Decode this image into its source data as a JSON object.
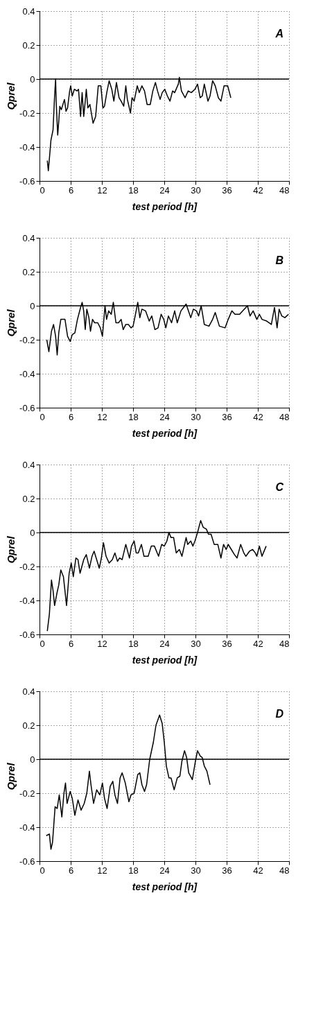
{
  "chart_data": [
    {
      "type": "line",
      "xlabel": "test period [h]",
      "ylabel": "Qprel",
      "annotations": [
        "A"
      ],
      "color": "#000000",
      "grid": true,
      "xlim": [
        0,
        48
      ],
      "xticks": [
        0,
        6,
        12,
        18,
        24,
        30,
        36,
        42,
        48
      ],
      "ylim": [
        -0.6,
        0.4
      ],
      "yticks": [
        -0.6,
        -0.4,
        -0.2,
        0,
        0.2,
        0.4
      ],
      "ref_lines": [
        {
          "axis": "y",
          "value": 0,
          "color": "#000000"
        }
      ],
      "x": [
        1.5,
        1.7,
        2.2,
        2.6,
        2.9,
        3.1,
        3.2,
        3.5,
        3.7,
        3.9,
        4.2,
        4.5,
        4.8,
        5.1,
        5.4,
        5.8,
        6.0,
        6.3,
        6.7,
        7.2,
        7.5,
        7.9,
        8.2,
        8.5,
        8.8,
        9.0,
        9.3,
        9.7,
        10.3,
        10.8,
        11.3,
        11.8,
        12.2,
        12.5,
        13.0,
        13.4,
        13.9,
        14.3,
        14.8,
        15.3,
        15.7,
        16.2,
        16.6,
        16.9,
        17.5,
        17.8,
        18.2,
        18.8,
        19.2,
        19.7,
        20.2,
        20.7,
        21.3,
        21.8,
        22.3,
        22.7,
        23.2,
        23.6,
        24.1,
        24.6,
        25.1,
        25.6,
        26.0,
        26.7,
        26.9,
        27.3,
        28.0,
        28.6,
        29.2,
        29.9,
        30.4,
        30.9,
        31.3,
        31.7,
        32.4,
        32.8,
        33.3,
        33.8,
        34.4,
        34.9,
        35.5,
        36.2,
        36.8
      ],
      "values": [
        -0.48,
        -0.54,
        -0.36,
        -0.3,
        -0.1,
        0.0,
        -0.13,
        -0.33,
        -0.25,
        -0.16,
        -0.18,
        -0.15,
        -0.12,
        -0.19,
        -0.17,
        -0.07,
        -0.04,
        -0.1,
        -0.06,
        -0.07,
        -0.06,
        -0.22,
        -0.08,
        -0.22,
        -0.13,
        -0.06,
        -0.17,
        -0.15,
        -0.26,
        -0.22,
        -0.04,
        -0.04,
        -0.17,
        -0.16,
        -0.07,
        -0.01,
        -0.06,
        -0.13,
        -0.02,
        -0.11,
        -0.13,
        -0.16,
        -0.04,
        -0.12,
        -0.2,
        -0.11,
        -0.13,
        -0.04,
        -0.08,
        -0.04,
        -0.07,
        -0.15,
        -0.15,
        -0.07,
        -0.02,
        -0.07,
        -0.12,
        -0.08,
        -0.06,
        -0.1,
        -0.13,
        -0.07,
        -0.08,
        -0.03,
        0.01,
        -0.07,
        -0.11,
        -0.07,
        -0.08,
        -0.06,
        -0.03,
        -0.11,
        -0.1,
        -0.03,
        -0.13,
        -0.1,
        -0.01,
        -0.04,
        -0.11,
        -0.13,
        -0.04,
        -0.04,
        -0.11
      ]
    },
    {
      "type": "line",
      "xlabel": "test period [h]",
      "ylabel": "Qprel",
      "annotations": [
        "B"
      ],
      "color": "#000000",
      "grid": true,
      "xlim": [
        0,
        48
      ],
      "xticks": [
        0,
        6,
        12,
        18,
        24,
        30,
        36,
        42,
        48
      ],
      "ylim": [
        -0.6,
        0.4
      ],
      "yticks": [
        -0.6,
        -0.4,
        -0.2,
        0,
        0.2,
        0.4
      ],
      "ref_lines": [
        {
          "axis": "y",
          "value": 0,
          "color": "#000000"
        }
      ],
      "x": [
        1.4,
        1.8,
        2.3,
        2.7,
        3.1,
        3.4,
        3.7,
        4.1,
        4.9,
        5.4,
        5.9,
        6.3,
        6.8,
        7.3,
        7.9,
        8.2,
        8.5,
        8.8,
        9.1,
        9.5,
        9.8,
        10.2,
        10.6,
        11.2,
        11.7,
        12.1,
        12.6,
        12.9,
        13.3,
        13.8,
        14.2,
        14.7,
        15.2,
        15.7,
        16.1,
        16.6,
        17.1,
        17.6,
        18.0,
        18.4,
        18.9,
        19.3,
        19.7,
        20.4,
        21.1,
        21.6,
        22.2,
        22.8,
        23.4,
        23.9,
        24.3,
        24.8,
        25.4,
        26.0,
        26.5,
        27.2,
        27.7,
        28.2,
        29.1,
        29.6,
        30.2,
        30.6,
        31.1,
        31.7,
        32.6,
        33.3,
        33.8,
        34.6,
        35.7,
        36.3,
        37.0,
        37.6,
        38.5,
        39.1,
        40.0,
        40.5,
        41.1,
        41.8,
        42.3,
        42.8,
        43.7,
        44.6,
        45.2,
        45.7,
        46.1,
        46.6,
        47.2,
        47.9
      ],
      "values": [
        -0.2,
        -0.27,
        -0.15,
        -0.11,
        -0.18,
        -0.29,
        -0.16,
        -0.08,
        -0.08,
        -0.18,
        -0.21,
        -0.17,
        -0.16,
        -0.08,
        -0.01,
        0.02,
        -0.03,
        -0.14,
        -0.02,
        -0.07,
        -0.15,
        -0.08,
        -0.1,
        -0.1,
        -0.13,
        -0.18,
        0.0,
        -0.08,
        -0.03,
        -0.05,
        0.02,
        -0.1,
        -0.1,
        -0.08,
        -0.14,
        -0.11,
        -0.11,
        -0.13,
        -0.12,
        -0.06,
        0.02,
        -0.07,
        -0.02,
        -0.03,
        -0.09,
        -0.06,
        -0.14,
        -0.13,
        -0.05,
        -0.08,
        -0.13,
        -0.06,
        -0.1,
        -0.03,
        -0.1,
        -0.03,
        -0.01,
        0.01,
        -0.07,
        -0.02,
        -0.03,
        -0.06,
        0.0,
        -0.11,
        -0.12,
        -0.08,
        -0.04,
        -0.12,
        -0.13,
        -0.08,
        -0.03,
        -0.05,
        -0.05,
        -0.03,
        0.0,
        -0.06,
        -0.03,
        -0.08,
        -0.05,
        -0.08,
        -0.09,
        -0.11,
        -0.01,
        -0.13,
        -0.02,
        -0.06,
        -0.07,
        -0.05
      ]
    },
    {
      "type": "line",
      "xlabel": "test period [h]",
      "ylabel": "Qprel",
      "annotations": [
        "C"
      ],
      "color": "#000000",
      "grid": true,
      "xlim": [
        0,
        48
      ],
      "xticks": [
        0,
        6,
        12,
        18,
        24,
        30,
        36,
        42,
        48
      ],
      "ylim": [
        -0.6,
        0.4
      ],
      "yticks": [
        -0.6,
        -0.4,
        -0.2,
        0,
        0.2,
        0.4
      ],
      "ref_lines": [
        {
          "axis": "y",
          "value": 0,
          "color": "#000000"
        }
      ],
      "x": [
        1.5,
        1.9,
        2.3,
        2.6,
        2.9,
        3.4,
        3.7,
        4.1,
        4.6,
        5.2,
        5.7,
        6.1,
        6.5,
        7.0,
        7.4,
        7.8,
        8.5,
        9.0,
        9.6,
        10.1,
        10.5,
        11.0,
        11.5,
        11.9,
        12.3,
        12.8,
        13.4,
        14.0,
        14.5,
        15.0,
        15.4,
        15.9,
        16.6,
        17.3,
        17.7,
        18.2,
        18.6,
        19.0,
        19.6,
        20.1,
        20.9,
        21.5,
        22.1,
        22.9,
        23.5,
        24.0,
        24.5,
        24.9,
        25.3,
        25.8,
        26.3,
        26.9,
        27.4,
        28.2,
        28.5,
        29.1,
        29.5,
        29.9,
        30.4,
        31.0,
        31.5,
        32.1,
        32.5,
        33.0,
        33.6,
        34.3,
        34.9,
        35.4,
        35.9,
        36.3,
        36.9,
        37.5,
        38.0,
        38.7,
        39.3,
        39.7,
        40.4,
        41.0,
        41.5,
        41.8,
        42.3,
        42.8,
        43.6
      ],
      "values": [
        -0.58,
        -0.48,
        -0.28,
        -0.34,
        -0.43,
        -0.35,
        -0.31,
        -0.22,
        -0.26,
        -0.43,
        -0.24,
        -0.18,
        -0.26,
        -0.15,
        -0.16,
        -0.24,
        -0.16,
        -0.13,
        -0.21,
        -0.14,
        -0.11,
        -0.16,
        -0.21,
        -0.15,
        -0.06,
        -0.14,
        -0.18,
        -0.16,
        -0.12,
        -0.17,
        -0.15,
        -0.16,
        -0.07,
        -0.15,
        -0.08,
        -0.05,
        -0.12,
        -0.12,
        -0.07,
        -0.14,
        -0.14,
        -0.08,
        -0.08,
        -0.14,
        -0.07,
        -0.08,
        -0.05,
        0.0,
        -0.03,
        -0.03,
        -0.12,
        -0.1,
        -0.14,
        -0.03,
        -0.07,
        -0.05,
        -0.08,
        -0.05,
        0.0,
        0.07,
        0.03,
        0.02,
        -0.01,
        -0.01,
        -0.07,
        -0.07,
        -0.15,
        -0.07,
        -0.1,
        -0.07,
        -0.1,
        -0.13,
        -0.15,
        -0.07,
        -0.12,
        -0.14,
        -0.11,
        -0.1,
        -0.12,
        -0.14,
        -0.08,
        -0.14,
        -0.08
      ]
    },
    {
      "type": "line",
      "xlabel": "test period [h]",
      "ylabel": "Qprel",
      "annotations": [
        "D"
      ],
      "color": "#000000",
      "grid": true,
      "xlim": [
        0,
        48
      ],
      "xticks": [
        0,
        6,
        12,
        18,
        24,
        30,
        36,
        42,
        48
      ],
      "ylim": [
        -0.6,
        0.4
      ],
      "yticks": [
        -0.6,
        -0.4,
        -0.2,
        0,
        0.2,
        0.4
      ],
      "ref_lines": [
        {
          "axis": "y",
          "value": 0,
          "color": "#000000"
        }
      ],
      "x": [
        1.3,
        1.9,
        2.2,
        2.5,
        3.0,
        3.4,
        3.8,
        4.3,
        4.7,
        5.0,
        5.3,
        5.9,
        6.3,
        6.8,
        7.4,
        8.0,
        8.6,
        9.1,
        9.6,
        9.9,
        10.4,
        11.0,
        11.6,
        12.1,
        12.5,
        13.0,
        13.6,
        14.1,
        14.5,
        15.0,
        15.5,
        15.9,
        16.5,
        17.2,
        17.6,
        18.2,
        18.9,
        19.3,
        19.7,
        20.2,
        20.6,
        21.2,
        21.9,
        22.4,
        23.1,
        23.6,
        24.0,
        24.4,
        24.9,
        25.3,
        25.9,
        26.5,
        27.0,
        27.4,
        27.9,
        28.3,
        28.7,
        29.4,
        30.0,
        30.4,
        30.9,
        31.3,
        31.7,
        32.2,
        32.8
      ],
      "values": [
        -0.45,
        -0.44,
        -0.53,
        -0.49,
        -0.28,
        -0.29,
        -0.21,
        -0.34,
        -0.2,
        -0.14,
        -0.26,
        -0.19,
        -0.23,
        -0.33,
        -0.24,
        -0.3,
        -0.26,
        -0.2,
        -0.07,
        -0.15,
        -0.26,
        -0.18,
        -0.21,
        -0.14,
        -0.23,
        -0.29,
        -0.16,
        -0.13,
        -0.21,
        -0.26,
        -0.11,
        -0.08,
        -0.14,
        -0.25,
        -0.21,
        -0.2,
        -0.09,
        -0.08,
        -0.15,
        -0.19,
        -0.15,
        0.0,
        0.1,
        0.2,
        0.26,
        0.21,
        0.1,
        -0.04,
        -0.11,
        -0.11,
        -0.18,
        -0.11,
        -0.1,
        -0.01,
        0.05,
        0.01,
        -0.08,
        -0.12,
        -0.01,
        0.05,
        0.02,
        0.01,
        -0.04,
        -0.07,
        -0.15
      ]
    }
  ]
}
